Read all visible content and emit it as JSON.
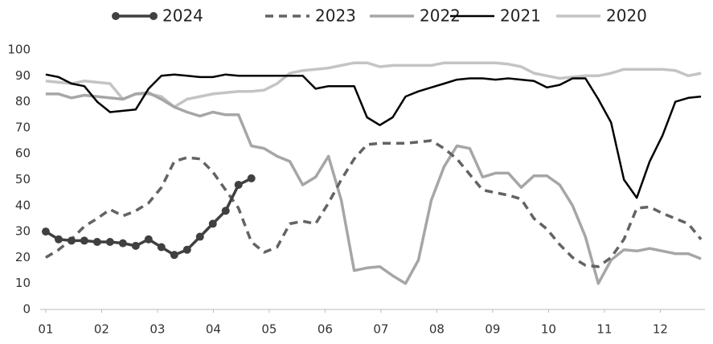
{
  "chart_data": {
    "type": "line",
    "x": [
      1.0,
      1.23,
      1.46,
      1.69,
      1.92,
      2.15,
      2.38,
      2.61,
      2.84,
      3.07,
      3.3,
      3.53,
      3.76,
      3.99,
      4.22,
      4.45,
      4.68,
      4.91,
      5.14,
      5.37,
      5.6,
      5.83,
      6.06,
      6.29,
      6.52,
      6.75,
      6.98,
      7.21,
      7.44,
      7.67,
      7.9,
      8.13,
      8.36,
      8.59,
      8.82,
      9.05,
      9.28,
      9.51,
      9.74,
      9.97,
      10.2,
      10.43,
      10.66,
      10.89,
      11.12,
      11.35,
      11.58,
      11.81,
      12.04,
      12.27,
      12.5,
      12.73
    ],
    "series": [
      {
        "name": "2024",
        "color": "#404040",
        "dash": false,
        "markers": true,
        "width": 3.5,
        "values": [
          30,
          27,
          26.5,
          26.5,
          26,
          26,
          25.5,
          24.5,
          27,
          24,
          21,
          23,
          28,
          33,
          38,
          48,
          50.5,
          null,
          null,
          null,
          null,
          null,
          null,
          null,
          null,
          null,
          null,
          null,
          null,
          null,
          null,
          null,
          null,
          null,
          null,
          null,
          null,
          null,
          null,
          null,
          null,
          null,
          null,
          null,
          null,
          null,
          null,
          null,
          null,
          null,
          null,
          null
        ]
      },
      {
        "name": "2023",
        "color": "#636363",
        "dash": true,
        "markers": false,
        "width": 3.5,
        "values": [
          20,
          23,
          27,
          32,
          35,
          38.5,
          36,
          38,
          41,
          47,
          57,
          58.5,
          58,
          53,
          46,
          39,
          26,
          22,
          24,
          33,
          34,
          33,
          41,
          50,
          58,
          63.5,
          64,
          64,
          64,
          64.5,
          65,
          62,
          58,
          52,
          46,
          45,
          44,
          42.5,
          35,
          31,
          25,
          20,
          17,
          16.5,
          20,
          27,
          39,
          39.5,
          37,
          35,
          33,
          27
        ]
      },
      {
        "name": "2022",
        "color": "#a6a6a6",
        "dash": false,
        "markers": false,
        "width": 3.5,
        "values": [
          83,
          83,
          81.5,
          82.5,
          82,
          81.5,
          81,
          83,
          83.5,
          81,
          78,
          76,
          74.5,
          76,
          75,
          75,
          63,
          62,
          59,
          57,
          48,
          51,
          59,
          42,
          15,
          16,
          16.5,
          13,
          10,
          19,
          42,
          55,
          63,
          62,
          51,
          52.5,
          52.5,
          47,
          51.5,
          51.5,
          48,
          40,
          28,
          10,
          19,
          23,
          22.5,
          23.5,
          22.5,
          21.5,
          21.5,
          19.5
        ]
      },
      {
        "name": "2021",
        "color": "#000000",
        "dash": false,
        "markers": false,
        "width": 2.5,
        "values": [
          90.5,
          89.5,
          87,
          86,
          80,
          76,
          76.5,
          77,
          85,
          90,
          90.5,
          90,
          89.5,
          89.5,
          90.5,
          90,
          90,
          90,
          90,
          90,
          90,
          85,
          86,
          86,
          86,
          74,
          71,
          74,
          82,
          84,
          85.5,
          87,
          88.5,
          89,
          89,
          88.5,
          89,
          88.5,
          88,
          85.5,
          86.5,
          89,
          89,
          81,
          72,
          50,
          43,
          57,
          67,
          80,
          81.5,
          82
        ]
      },
      {
        "name": "2020",
        "color": "#c4c4c4",
        "dash": false,
        "markers": false,
        "width": 3.5,
        "values": [
          88,
          87.5,
          87,
          88,
          87.5,
          87,
          81,
          83,
          83,
          82,
          78,
          81,
          82,
          83,
          83.5,
          84,
          84,
          84.5,
          87,
          91,
          92,
          92.5,
          93,
          94,
          95,
          95,
          93.5,
          94,
          94,
          94,
          94,
          95,
          95,
          95,
          95,
          95,
          94.5,
          93.5,
          91,
          90,
          89,
          89.5,
          90,
          90,
          91,
          92.5,
          92.5,
          92.5,
          92.5,
          92,
          90,
          91
        ]
      }
    ],
    "xlim": [
      0.9,
      12.8
    ],
    "ylim": [
      0,
      100
    ],
    "xticks": [
      {
        "value": 1,
        "label": "01"
      },
      {
        "value": 2,
        "label": "02"
      },
      {
        "value": 3,
        "label": "03"
      },
      {
        "value": 4,
        "label": "04"
      },
      {
        "value": 5,
        "label": "05"
      },
      {
        "value": 6,
        "label": "06"
      },
      {
        "value": 7,
        "label": "07"
      },
      {
        "value": 8,
        "label": "08"
      },
      {
        "value": 9,
        "label": "09"
      },
      {
        "value": 10,
        "label": "10"
      },
      {
        "value": 11,
        "label": "11"
      },
      {
        "value": 12,
        "label": "12"
      }
    ],
    "yticks": [
      0,
      10,
      20,
      30,
      40,
      50,
      60,
      70,
      80,
      90,
      100
    ],
    "grid": false,
    "legend": "top"
  }
}
